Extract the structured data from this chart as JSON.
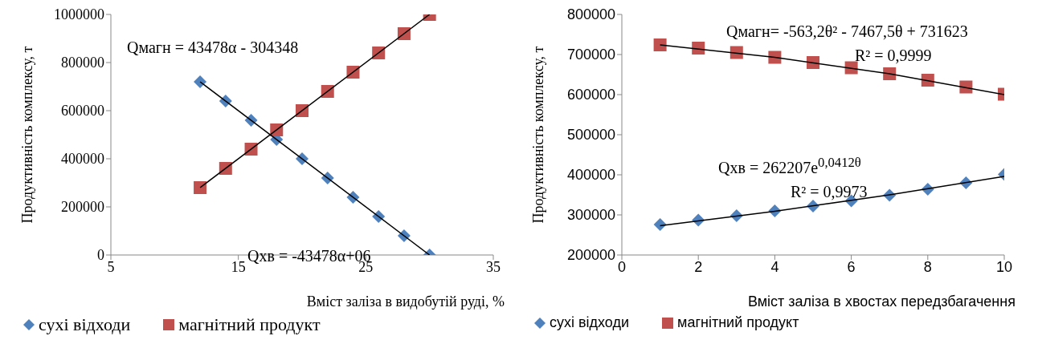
{
  "chart_data": [
    {
      "type": "scatter",
      "xlabel": "Вміст заліза в видобутій руді, %",
      "ylabel": "Продуктивність комплексу, т",
      "xlim": [
        5,
        35
      ],
      "xticks": [
        5,
        15,
        25,
        35
      ],
      "ylim": [
        0,
        1000000
      ],
      "yticks": [
        0,
        200000,
        400000,
        600000,
        800000,
        1000000
      ],
      "grid": false,
      "legend": "bottom",
      "annotations": [
        "Qмагн = 43478α - 304348",
        "Qхв = -43478α+06"
      ],
      "series": [
        {
          "name": "сухі відходи",
          "color": "#4f81bd",
          "marker": "diamond",
          "x": [
            12,
            14,
            16,
            18,
            20,
            22,
            24,
            26,
            28,
            30
          ],
          "values": [
            720000,
            640000,
            560000,
            480000,
            400000,
            320000,
            240000,
            160000,
            80000,
            0
          ]
        },
        {
          "name": "магнітний продукт",
          "color": "#c0504d",
          "marker": "square",
          "x": [
            12,
            14,
            16,
            18,
            20,
            22,
            24,
            26,
            28,
            30
          ],
          "values": [
            280000,
            360000,
            440000,
            520000,
            600000,
            680000,
            760000,
            840000,
            920000,
            1000000
          ]
        },
        {
          "type": "line",
          "color": "#000000",
          "marker": "none",
          "x": [
            12,
            30
          ],
          "values": [
            720000,
            0
          ]
        },
        {
          "type": "line",
          "color": "#000000",
          "marker": "none",
          "x": [
            12,
            30
          ],
          "values": [
            280000,
            1000000
          ]
        }
      ]
    },
    {
      "type": "scatter",
      "xlabel": "Вміст заліза в хвостах передзбагачення",
      "ylabel": "Продуктивність комплексу, т",
      "xlim": [
        0,
        10
      ],
      "xticks": [
        0,
        2,
        4,
        6,
        8,
        10
      ],
      "ylim": [
        200000,
        800000
      ],
      "yticks": [
        200000,
        300000,
        400000,
        500000,
        600000,
        700000,
        800000
      ],
      "grid": false,
      "legend": "bottom",
      "annotations": [
        "Qмагн= -563,2θ² - 7467,5θ + 731623",
        "R² = 0,9999",
        "Qхв = 262207e$^{0,0412θ}$",
        "R² = 0,9973"
      ],
      "series": [
        {
          "name": "сухі відходи",
          "color": "#4f81bd",
          "marker": "diamond",
          "x": [
            1,
            2,
            3,
            4,
            5,
            6,
            7,
            8,
            9,
            10
          ],
          "values": [
            276000,
            287000,
            298000,
            310000,
            322000,
            335000,
            349000,
            364000,
            380000,
            401000
          ]
        },
        {
          "name": "магнітний продукт",
          "color": "#c0504d",
          "marker": "square",
          "x": [
            1,
            2,
            3,
            4,
            5,
            6,
            7,
            8,
            9,
            10
          ],
          "values": [
            724000,
            716000,
            705000,
            693000,
            680000,
            667000,
            652000,
            636000,
            619000,
            601000
          ]
        },
        {
          "type": "line",
          "color": "#000000",
          "marker": "none",
          "x": [
            1,
            4,
            7,
            10
          ],
          "values": [
            273000,
            309000,
            350000,
            396000
          ]
        },
        {
          "type": "line",
          "color": "#000000",
          "marker": "none",
          "x": [
            1,
            4,
            7,
            10
          ],
          "values": [
            724000,
            693000,
            652000,
            600000
          ]
        }
      ]
    }
  ]
}
